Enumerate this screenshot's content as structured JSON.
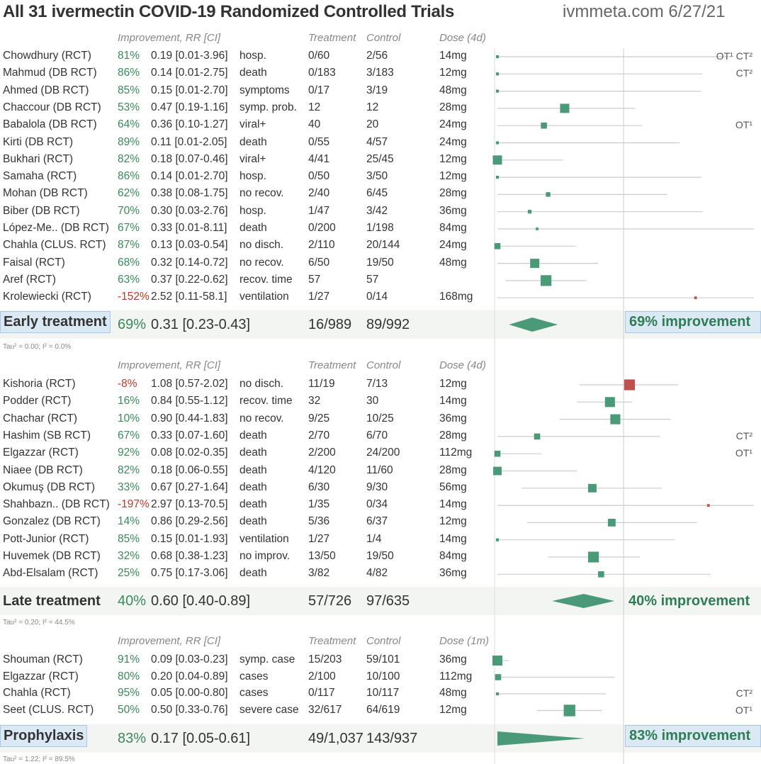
{
  "title": "All 31 ivermectin COVID-19 Randomized Controlled Trials",
  "site": "ivmmeta.com 6/27/21",
  "colors": {
    "pos": "#3a8a5a",
    "neg": "#c0392b",
    "square_pos": "#4a9a78",
    "square_neg": "#c0504d",
    "line": "#cccccc"
  },
  "headers_early": {
    "imp": "Improvement, RR [CI]",
    "treatment": "Treatment",
    "control": "Control",
    "dose": "Dose (4d)"
  },
  "headers_late": {
    "imp": "Improvement, RR [CI]",
    "treatment": "Treatment",
    "control": "Control",
    "dose": "Dose (4d)"
  },
  "headers_pro": {
    "imp": "Improvement, RR [CI]",
    "treatment": "Treatment",
    "control": "Control",
    "dose": "Dose (1m)"
  },
  "summaries": {
    "early": {
      "label": "Early treatment",
      "imp": "69%",
      "rr": "0.31 [0.23-0.43]",
      "treatment": "16/989",
      "control": "89/992",
      "improvement": "69% improvement",
      "tau": "Tau² = 0.00; I² = 0.0%"
    },
    "late": {
      "label": "Late treatment",
      "imp": "40%",
      "rr": "0.60 [0.40-0.89]",
      "treatment": "57/726",
      "control": "97/635",
      "improvement": "40% improvement",
      "tau": "Tau² = 0.20; I² = 44.5%"
    },
    "pro": {
      "label": "Prophylaxis",
      "imp": "83%",
      "rr": "0.17 [0.05-0.61]",
      "treatment": "49/1,037",
      "control": "143/937",
      "improvement": "83% improvement",
      "tau": "Tau² = 1.22; I² = 89.5%"
    }
  },
  "chart_data": {
    "type": "forest",
    "title": "All 31 ivermectin COVID-19 Randomized Controlled Trials",
    "scale": "log relative risk",
    "axis_reference": 1,
    "early": [
      {
        "study": "Chowdhury (RCT)",
        "imp": "81%",
        "rr": 0.19,
        "lo": 0.01,
        "hi": 3.96,
        "ci": "0.19 [0.01-3.96]",
        "outcome": "hosp.",
        "treatment": "0/60",
        "control": "2/56",
        "dose": "14mg",
        "note": "OT¹ CT²",
        "weight": 1
      },
      {
        "study": "Mahmud (DB RCT)",
        "imp": "86%",
        "rr": 0.14,
        "lo": 0.01,
        "hi": 2.75,
        "ci": "0.14 [0.01-2.75]",
        "outcome": "death",
        "treatment": "0/183",
        "control": "3/183",
        "dose": "12mg",
        "note": "CT²",
        "weight": 1
      },
      {
        "study": "Ahmed (DB RCT)",
        "imp": "85%",
        "rr": 0.15,
        "lo": 0.01,
        "hi": 2.7,
        "ci": "0.15 [0.01-2.70]",
        "outcome": "symptoms",
        "treatment": "0/17",
        "control": "3/19",
        "dose": "48mg",
        "note": "",
        "weight": 1
      },
      {
        "study": "Chaccour (DB RCT)",
        "imp": "53%",
        "rr": 0.47,
        "lo": 0.19,
        "hi": 1.16,
        "ci": "0.47 [0.19-1.16]",
        "outcome": "symp. prob.",
        "treatment": "12",
        "control": "12",
        "dose": "28mg",
        "note": "",
        "weight": 5
      },
      {
        "study": "Babalola (DB RCT)",
        "imp": "64%",
        "rr": 0.36,
        "lo": 0.1,
        "hi": 1.27,
        "ci": "0.36 [0.10-1.27]",
        "outcome": "viral+",
        "treatment": "40",
        "control": "20",
        "dose": "24mg",
        "note": "OT¹",
        "weight": 3
      },
      {
        "study": "Kirti (DB RCT)",
        "imp": "89%",
        "rr": 0.11,
        "lo": 0.01,
        "hi": 2.05,
        "ci": "0.11 [0.01-2.05]",
        "outcome": "death",
        "treatment": "0/55",
        "control": "4/57",
        "dose": "24mg",
        "note": "",
        "weight": 1
      },
      {
        "study": "Bukhari (RCT)",
        "imp": "82%",
        "rr": 0.18,
        "lo": 0.07,
        "hi": 0.46,
        "ci": "0.18 [0.07-0.46]",
        "outcome": "viral+",
        "treatment": "4/41",
        "control": "25/45",
        "dose": "12mg",
        "note": "",
        "weight": 5
      },
      {
        "study": "Samaha (RCT)",
        "imp": "86%",
        "rr": 0.14,
        "lo": 0.01,
        "hi": 2.7,
        "ci": "0.14 [0.01-2.70]",
        "outcome": "hosp.",
        "treatment": "0/50",
        "control": "3/50",
        "dose": "12mg",
        "note": "",
        "weight": 1
      },
      {
        "study": "Mohan (DB RCT)",
        "imp": "62%",
        "rr": 0.38,
        "lo": 0.08,
        "hi": 1.75,
        "ci": "0.38 [0.08-1.75]",
        "outcome": "no recov.",
        "treatment": "2/40",
        "control": "6/45",
        "dose": "28mg",
        "note": "",
        "weight": 2
      },
      {
        "study": "Biber (DB RCT)",
        "imp": "70%",
        "rr": 0.3,
        "lo": 0.03,
        "hi": 2.76,
        "ci": "0.30 [0.03-2.76]",
        "outcome": "hosp.",
        "treatment": "1/47",
        "control": "3/42",
        "dose": "36mg",
        "note": "",
        "weight": 1.5
      },
      {
        "study": "López-Me.. (DB RCT)",
        "imp": "67%",
        "rr": 0.33,
        "lo": 0.01,
        "hi": 8.11,
        "ci": "0.33 [0.01-8.11]",
        "outcome": "death",
        "treatment": "0/200",
        "control": "1/198",
        "dose": "84mg",
        "note": "",
        "weight": 0.8
      },
      {
        "study": "Chahla (CLUS. RCT)",
        "imp": "87%",
        "rr": 0.13,
        "lo": 0.03,
        "hi": 0.54,
        "ci": "0.13 [0.03-0.54]",
        "outcome": "no disch.",
        "treatment": "2/110",
        "control": "20/144",
        "dose": "24mg",
        "note": "",
        "weight": 3
      },
      {
        "study": "Faisal (RCT)",
        "imp": "68%",
        "rr": 0.32,
        "lo": 0.14,
        "hi": 0.72,
        "ci": "0.32 [0.14-0.72]",
        "outcome": "no recov.",
        "treatment": "6/50",
        "control": "19/50",
        "dose": "48mg",
        "note": "",
        "weight": 5
      },
      {
        "study": "Aref (RCT)",
        "imp": "63%",
        "rr": 0.37,
        "lo": 0.22,
        "hi": 0.62,
        "ci": "0.37 [0.22-0.62]",
        "outcome": "recov. time",
        "treatment": "57",
        "control": "57",
        "dose": "",
        "note": "",
        "weight": 6
      },
      {
        "study": "Krolewiecki (RCT)",
        "imp": "-152%",
        "rr": 2.52,
        "lo": 0.11,
        "hi": 58.1,
        "ci": "2.52 [0.11-58.1]",
        "outcome": "ventilation",
        "treatment": "1/27",
        "control": "0/14",
        "dose": "168mg",
        "note": "",
        "weight": 0.8
      }
    ],
    "early_summary": {
      "rr": 0.31,
      "lo": 0.23,
      "hi": 0.43
    },
    "late": [
      {
        "study": "Kishoria (RCT)",
        "imp": "-8%",
        "rr": 1.08,
        "lo": 0.57,
        "hi": 2.02,
        "ci": "1.08 [0.57-2.02]",
        "outcome": "no disch.",
        "treatment": "11/19",
        "control": "7/13",
        "dose": "12mg",
        "note": "",
        "weight": 6
      },
      {
        "study": "Podder (RCT)",
        "imp": "16%",
        "rr": 0.84,
        "lo": 0.55,
        "hi": 1.12,
        "ci": "0.84 [0.55-1.12]",
        "outcome": "recov. time",
        "treatment": "32",
        "control": "30",
        "dose": "14mg",
        "note": "",
        "weight": 5.5
      },
      {
        "study": "Chachar (RCT)",
        "imp": "10%",
        "rr": 0.9,
        "lo": 0.44,
        "hi": 1.83,
        "ci": "0.90 [0.44-1.83]",
        "outcome": "no recov.",
        "treatment": "9/25",
        "control": "10/25",
        "dose": "36mg",
        "note": "",
        "weight": 5.5
      },
      {
        "study": "Hashim (SB RCT)",
        "imp": "67%",
        "rr": 0.33,
        "lo": 0.07,
        "hi": 1.6,
        "ci": "0.33 [0.07-1.60]",
        "outcome": "death",
        "treatment": "2/70",
        "control": "6/70",
        "dose": "28mg",
        "note": "CT²",
        "weight": 3
      },
      {
        "study": "Elgazzar (RCT)",
        "imp": "92%",
        "rr": 0.08,
        "lo": 0.02,
        "hi": 0.35,
        "ci": "0.08 [0.02-0.35]",
        "outcome": "death",
        "treatment": "2/200",
        "control": "24/200",
        "dose": "112mg",
        "note": "OT¹",
        "weight": 3
      },
      {
        "study": "Niaee (DB RCT)",
        "imp": "82%",
        "rr": 0.18,
        "lo": 0.06,
        "hi": 0.55,
        "ci": "0.18 [0.06-0.55]",
        "outcome": "death",
        "treatment": "4/120",
        "control": "11/60",
        "dose": "28mg",
        "note": "",
        "weight": 4.5
      },
      {
        "study": "Okumuş (DB RCT)",
        "imp": "33%",
        "rr": 0.67,
        "lo": 0.27,
        "hi": 1.64,
        "ci": "0.67 [0.27-1.64]",
        "outcome": "death",
        "treatment": "6/30",
        "control": "9/30",
        "dose": "56mg",
        "note": "",
        "weight": 4.5
      },
      {
        "study": "Shahbazn.. (DB RCT)",
        "imp": "-197%",
        "rr": 2.97,
        "lo": 0.13,
        "hi": 70.5,
        "ci": "2.97 [0.13-70.5]",
        "outcome": "death",
        "treatment": "1/35",
        "control": "0/34",
        "dose": "14mg",
        "note": "",
        "weight": 0.8
      },
      {
        "study": "Gonzalez (DB RCT)",
        "imp": "14%",
        "rr": 0.86,
        "lo": 0.29,
        "hi": 2.56,
        "ci": "0.86 [0.29-2.56]",
        "outcome": "death",
        "treatment": "5/36",
        "control": "6/37",
        "dose": "12mg",
        "note": "",
        "weight": 4
      },
      {
        "study": "Pott-Junior (RCT)",
        "imp": "85%",
        "rr": 0.15,
        "lo": 0.01,
        "hi": 1.93,
        "ci": "0.15 [0.01-1.93]",
        "outcome": "ventilation",
        "treatment": "1/27",
        "control": "1/4",
        "dose": "14mg",
        "note": "",
        "weight": 1
      },
      {
        "study": "Huvemek (DB RCT)",
        "imp": "32%",
        "rr": 0.68,
        "lo": 0.38,
        "hi": 1.23,
        "ci": "0.68 [0.38-1.23]",
        "outcome": "no improv.",
        "treatment": "13/50",
        "control": "19/50",
        "dose": "84mg",
        "note": "",
        "weight": 6
      },
      {
        "study": "Abd-Elsalam (RCT)",
        "imp": "25%",
        "rr": 0.75,
        "lo": 0.17,
        "hi": 3.06,
        "ci": "0.75 [0.17-3.06]",
        "outcome": "death",
        "treatment": "3/82",
        "control": "4/82",
        "dose": "36mg",
        "note": "",
        "weight": 3
      }
    ],
    "late_summary": {
      "rr": 0.6,
      "lo": 0.4,
      "hi": 0.89
    },
    "pro": [
      {
        "study": "Shouman (RCT)",
        "imp": "91%",
        "rr": 0.09,
        "lo": 0.03,
        "hi": 0.23,
        "ci": "0.09 [0.03-0.23]",
        "outcome": "symp. case",
        "treatment": "15/203",
        "control": "59/101",
        "dose": "36mg",
        "note": "",
        "weight": 5.5
      },
      {
        "study": "Elgazzar (RCT)",
        "imp": "80%",
        "rr": 0.2,
        "lo": 0.04,
        "hi": 0.89,
        "ci": "0.20 [0.04-0.89]",
        "outcome": "cases",
        "treatment": "2/100",
        "control": "10/100",
        "dose": "112mg",
        "note": "",
        "weight": 3
      },
      {
        "study": "Chahla (RCT)",
        "imp": "95%",
        "rr": 0.05,
        "lo": 0.0,
        "hi": 0.8,
        "ci": "0.05 [0.00-0.80]",
        "outcome": "cases",
        "treatment": "0/117",
        "control": "10/117",
        "dose": "48mg",
        "note": "CT²",
        "weight": 1
      },
      {
        "study": "Seet (CLUS. RCT)",
        "imp": "50%",
        "rr": 0.5,
        "lo": 0.33,
        "hi": 0.76,
        "ci": "0.50 [0.33-0.76]",
        "outcome": "severe case",
        "treatment": "32/617",
        "control": "64/619",
        "dose": "12mg",
        "note": "OT¹",
        "weight": 6.5
      }
    ],
    "pro_summary": {
      "rr": 0.17,
      "lo": 0.05,
      "hi": 0.61
    }
  }
}
